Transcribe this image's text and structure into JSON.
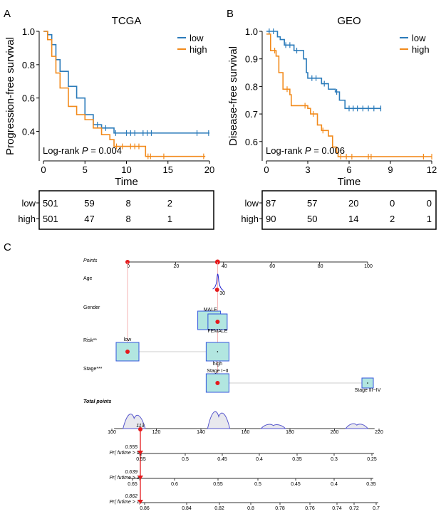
{
  "colors": {
    "low": "#2b7bba",
    "high": "#f28a1b",
    "nomo_box": "#b2e6e0",
    "nomo_border": "#3355dd",
    "nomo_red": "#e41a1c",
    "density": "#5555cc"
  },
  "chart_data": [
    {
      "panel": "A",
      "type": "line",
      "title": "TCGA",
      "xlabel": "Time",
      "ylabel": "Progression-free survival",
      "xlim": [
        0,
        20
      ],
      "ylim": [
        0.24,
        1.0
      ],
      "xticks": [
        0,
        5,
        10,
        15,
        20
      ],
      "yticks": [
        "1.0",
        "0.8",
        "0.6",
        "0.4"
      ],
      "annotation_prefix": "Log-rank ",
      "annotation_p": "P",
      "annotation_value": " = 0.004",
      "legend": [
        "low",
        "high"
      ],
      "legend_position": "top-right",
      "series": [
        {
          "name": "low",
          "points": [
            [
              0,
              1
            ],
            [
              0.5,
              0.98
            ],
            [
              1,
              0.92
            ],
            [
              1.5,
              0.83
            ],
            [
              2,
              0.76
            ],
            [
              3,
              0.67
            ],
            [
              4,
              0.6
            ],
            [
              5,
              0.5
            ],
            [
              6,
              0.44
            ],
            [
              7,
              0.42
            ],
            [
              8.5,
              0.39
            ],
            [
              20,
              0.39
            ]
          ],
          "censors": [
            6.5,
            7.5,
            8.7,
            10,
            10.5,
            11,
            12,
            12.5,
            13,
            18.5,
            19.9
          ]
        },
        {
          "name": "high",
          "points": [
            [
              0,
              1
            ],
            [
              0.5,
              0.95
            ],
            [
              1,
              0.85
            ],
            [
              1.5,
              0.75
            ],
            [
              2,
              0.66
            ],
            [
              3,
              0.55
            ],
            [
              4,
              0.5
            ],
            [
              5,
              0.47
            ],
            [
              6,
              0.42
            ],
            [
              7,
              0.38
            ],
            [
              8,
              0.35
            ],
            [
              8.5,
              0.31
            ],
            [
              12.3,
              0.25
            ],
            [
              19.5,
              0.25
            ]
          ],
          "censors": [
            8.8,
            9.5,
            10.5,
            11,
            11.5,
            12.6,
            12.9,
            14.5,
            19.3
          ]
        }
      ],
      "risk_table": {
        "times": [
          0,
          5,
          10,
          15
        ],
        "rows": [
          {
            "label": "low",
            "values": [
              "501",
              "59",
              "8",
              "2"
            ]
          },
          {
            "label": "high",
            "values": [
              "501",
              "47",
              "8",
              "1"
            ]
          }
        ]
      }
    },
    {
      "panel": "B",
      "type": "line",
      "title": "GEO",
      "xlabel": "Time",
      "ylabel": "Disease-free survival",
      "xlim": [
        0,
        12
      ],
      "ylim": [
        0.54,
        1.0
      ],
      "xticks": [
        0,
        3,
        6,
        9,
        12
      ],
      "yticks": [
        "1.0",
        "0.9",
        "0.8",
        "0.7",
        "0.6"
      ],
      "annotation_prefix": "Log-rank ",
      "annotation_p": "P",
      "annotation_value": " = 0.006",
      "legend": [
        "low",
        "high"
      ],
      "legend_position": "top-right",
      "series": [
        {
          "name": "low",
          "points": [
            [
              0,
              1
            ],
            [
              0.8,
              0.98
            ],
            [
              1,
              0.97
            ],
            [
              1.3,
              0.95
            ],
            [
              2,
              0.93
            ],
            [
              2.7,
              0.9
            ],
            [
              2.9,
              0.85
            ],
            [
              3,
              0.83
            ],
            [
              4,
              0.81
            ],
            [
              4.5,
              0.79
            ],
            [
              5,
              0.78
            ],
            [
              5.3,
              0.75
            ],
            [
              5.7,
              0.72
            ],
            [
              8.3,
              0.72
            ]
          ],
          "censors": [
            0.2,
            0.5,
            1.4,
            1.7,
            2.2,
            3.3,
            3.6,
            4.2,
            5.1,
            6.0,
            6.3,
            6.6,
            7.0,
            7.4,
            7.8,
            8.3
          ]
        },
        {
          "name": "high",
          "points": [
            [
              0,
              0.99
            ],
            [
              0.3,
              0.93
            ],
            [
              0.7,
              0.91
            ],
            [
              0.9,
              0.85
            ],
            [
              1.2,
              0.79
            ],
            [
              1.7,
              0.77
            ],
            [
              1.8,
              0.73
            ],
            [
              3,
              0.72
            ],
            [
              3.2,
              0.7
            ],
            [
              3.7,
              0.66
            ],
            [
              4,
              0.64
            ],
            [
              4.5,
              0.62
            ],
            [
              4.8,
              0.58
            ],
            [
              5.1,
              0.56
            ],
            [
              5.2,
              0.545
            ],
            [
              12,
              0.545
            ]
          ],
          "censors": [
            0.6,
            1.5,
            2.8,
            3.4,
            4.1,
            5.4,
            5.8,
            6.2,
            7.4,
            7.6,
            11.4,
            12
          ]
        }
      ],
      "risk_table": {
        "times": [
          0,
          3,
          6,
          9,
          12
        ],
        "rows": [
          {
            "label": "low",
            "values": [
              "87",
              "57",
              "20",
              "0",
              "0"
            ]
          },
          {
            "label": "high",
            "values": [
              "90",
              "50",
              "14",
              "2",
              "1"
            ]
          }
        ]
      }
    },
    {
      "panel": "C",
      "type": "nomogram",
      "points_label": "Points",
      "points_ticks": [
        0,
        20,
        40,
        60,
        80,
        100
      ],
      "variables": [
        {
          "label": "Age",
          "levels": [
            {
              "name": "30",
              "points": 37
            }
          ]
        },
        {
          "label": "Gender",
          "levels": [
            {
              "name": "MALE",
              "points": 34
            },
            {
              "name": "FEMALE",
              "points": 38
            }
          ]
        },
        {
          "label": "Risk**",
          "levels": [
            {
              "name": "low",
              "points": 0
            },
            {
              "name": "high",
              "points": 38
            }
          ]
        },
        {
          "label": "Stage***",
          "levels": [
            {
              "name": "Stage I−II",
              "points": 38
            },
            {
              "name": "Stage III−IV",
              "points": 100
            }
          ]
        }
      ],
      "total_label": "Total points",
      "total_ticks": [
        100,
        120,
        140,
        160,
        180,
        200,
        220
      ],
      "total_value": "113",
      "probabilities": [
        {
          "label": "Pr( futime > 5)",
          "value": "0.555",
          "ticks": [
            "0.55",
            "0.5",
            "0.45",
            "0.4",
            "0.35",
            "0.3",
            "0.25"
          ]
        },
        {
          "label": "Pr( futime > 3)",
          "value": "0.639",
          "ticks": [
            "0.65",
            "0.6",
            "0.55",
            "0.5",
            "0.45",
            "0.4",
            "0.35"
          ]
        },
        {
          "label": "Pr( futime > 1)",
          "value": "0.862",
          "ticks": [
            "0.86",
            "0.84",
            "0.82",
            "0.8",
            "0.78",
            "0.76",
            "0.74",
            "0.72",
            "0.7"
          ]
        }
      ]
    }
  ],
  "panel_labels": [
    "A",
    "B",
    "C"
  ]
}
